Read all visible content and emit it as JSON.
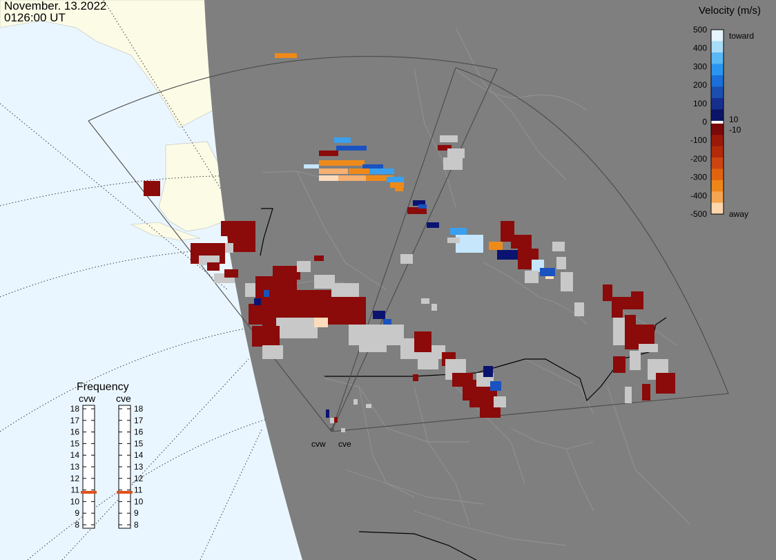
{
  "header": {
    "date": "November. 13.2022",
    "time": "0126:00 UT"
  },
  "legend": {
    "title": "Velocity (m/s)",
    "toward_label": "toward",
    "away_label": "away",
    "ticks": [
      "500",
      "400",
      "300",
      "200",
      "100",
      "0",
      "-100",
      "-200",
      "-300",
      "-400",
      "-500"
    ],
    "ticks_right": [
      "10",
      "-10"
    ],
    "colors": {
      "toward": [
        "#e6f5ff",
        "#a8dcf8",
        "#5ab8f5",
        "#2a95ef",
        "#1a6fd8",
        "#1a4fb0",
        "#162f8e",
        "#0b1466"
      ],
      "away": [
        "#7a0a0a",
        "#9a1a0a",
        "#b22a0a",
        "#cc4410",
        "#e06410",
        "#ee8518",
        "#f5a550",
        "#fcd6ac"
      ]
    }
  },
  "stations": {
    "west": "cvw",
    "east": "cve"
  },
  "frequency": {
    "title": "Frequency",
    "label_west": "cvw",
    "label_east": "cve",
    "levels": [
      "18",
      "17",
      "16",
      "15",
      "14",
      "13",
      "12",
      "11",
      "10",
      "9",
      "8"
    ],
    "cvw_mhz": 10.8,
    "cve_mhz": 10.8,
    "marker_color": "#e0501a"
  },
  "colors": {
    "land": "#7f7f7f",
    "ocean_outside": "#eaf6ff",
    "land_outside": "#fbfbe6",
    "boundaries": "#9a9a9a",
    "grid_line": "#000000",
    "ground_scatter": "#c8c8c8"
  }
}
